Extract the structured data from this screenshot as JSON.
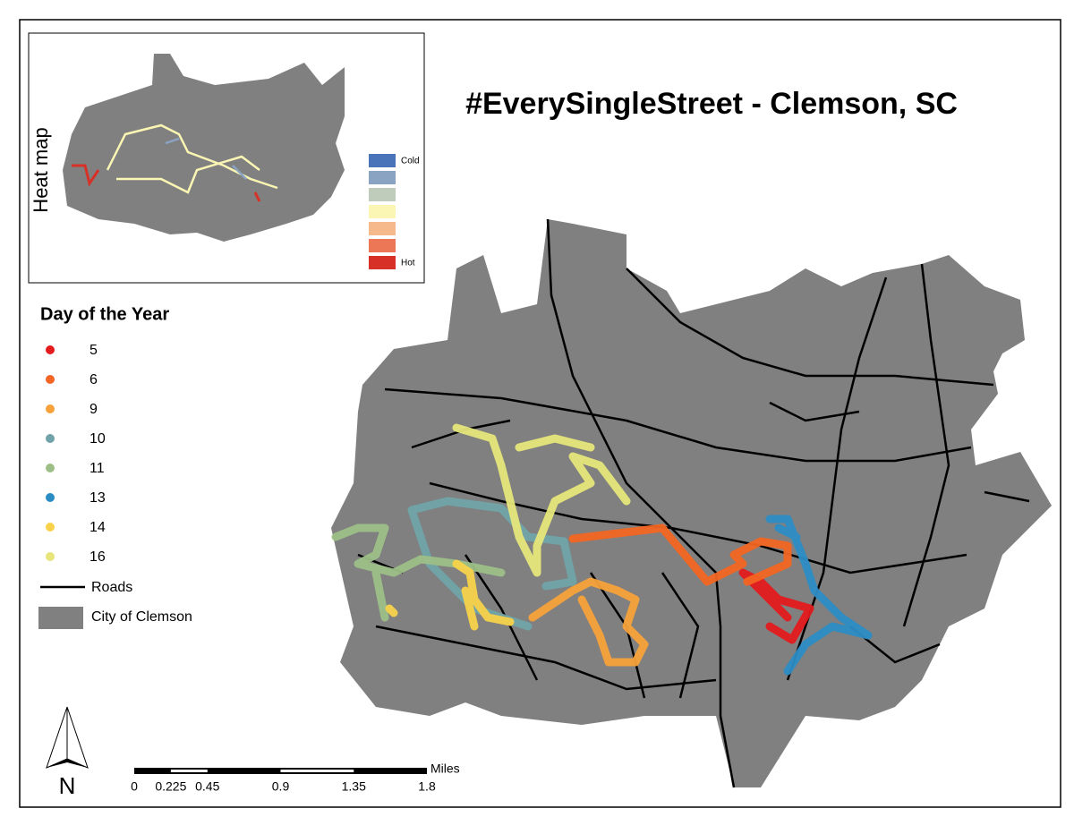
{
  "title": "#EverySingleStreet - Clemson, SC",
  "heat_map": {
    "label": "Heat map",
    "low_label": "Cold",
    "high_label": "Hot",
    "colors": [
      "#4a74b9",
      "#8aa3c2",
      "#bfcbbb",
      "#fbf6b3",
      "#f6b98c",
      "#ec7756",
      "#d73027"
    ]
  },
  "legend": {
    "title": "Day of the Year",
    "items": [
      {
        "label": 5,
        "color": "#e41a1c"
      },
      {
        "label": 6,
        "color": "#f26522"
      },
      {
        "label": 9,
        "color": "#f7a13a"
      },
      {
        "label": 10,
        "color": "#6fa3a8"
      },
      {
        "label": 11,
        "color": "#9dbf87"
      },
      {
        "label": 13,
        "color": "#2b8cc4"
      },
      {
        "label": 14,
        "color": "#f7d24a"
      },
      {
        "label": 16,
        "color": "#e6e67a"
      }
    ],
    "roads": "Roads",
    "city": "City of Clemson"
  },
  "scale_bar": {
    "unit": "Miles",
    "ticks": [
      0,
      0.225,
      0.45,
      0.9,
      1.35,
      1.8
    ]
  },
  "north": "N"
}
